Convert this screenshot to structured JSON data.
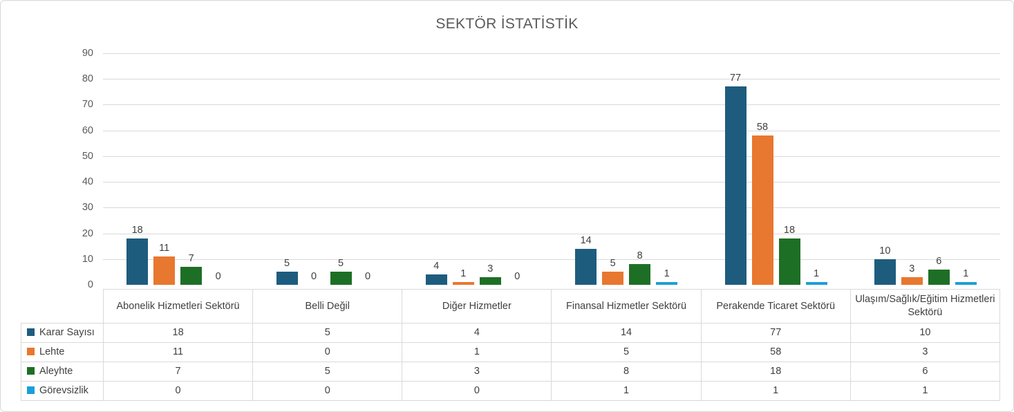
{
  "title": "SEKTÖR İSTATİSTİK",
  "colors": {
    "grid": "#D9D9D9",
    "axis_text": "#595959",
    "value_text": "#404040",
    "series_karar_sayisi": "#1E5C7E",
    "series_lehte": "#E8772F",
    "series_aleyhte": "#1E6F26",
    "series_gorevsizlik": "#1B9FD8"
  },
  "chart_data": {
    "type": "bar",
    "title": "SEKTÖR İSTATİSTİK",
    "categories": [
      "Abonelik Hizmetleri Sektörü",
      "Belli Değil",
      "Diğer Hizmetler",
      "Finansal Hizmetler Sektörü",
      "Perakende Ticaret Sektörü",
      "Ulaşım/Sağlık/Eğitim Hizmetleri Sektörü"
    ],
    "series": [
      {
        "name": "Karar Sayısı",
        "color": "#1E5C7E",
        "values": [
          18,
          5,
          4,
          14,
          77,
          10
        ]
      },
      {
        "name": "Lehte",
        "color": "#E8772F",
        "values": [
          11,
          0,
          1,
          5,
          58,
          3
        ]
      },
      {
        "name": "Aleyhte",
        "color": "#1E6F26",
        "values": [
          7,
          5,
          3,
          8,
          18,
          6
        ]
      },
      {
        "name": "Görevsizlik",
        "color": "#1B9FD8",
        "values": [
          0,
          0,
          0,
          1,
          1,
          1
        ]
      }
    ],
    "xlabel": "",
    "ylabel": "",
    "ylim": [
      0,
      90
    ],
    "ytick_step": 10,
    "grid": true,
    "data_labels": true,
    "legend_position": "data-table-left"
  }
}
